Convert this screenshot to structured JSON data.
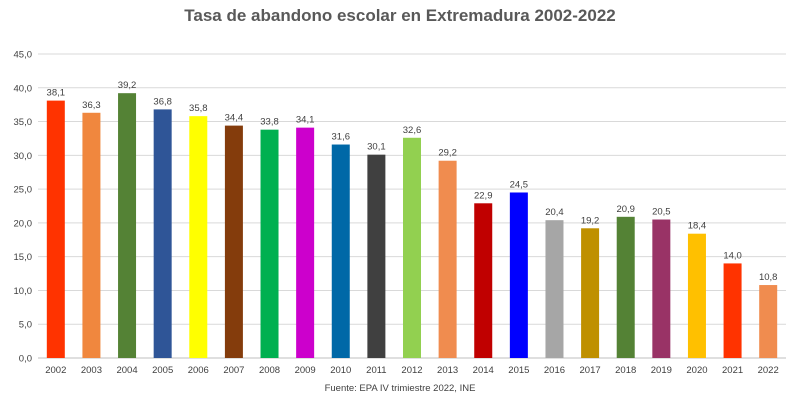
{
  "chart_data": {
    "type": "bar",
    "title": "Tasa de abandono escolar en Extremadura 2002-2022",
    "source": "Fuente: EPA IV trimiestre 2022, INE",
    "xlabel": "",
    "ylabel": "",
    "ylim": [
      0,
      45
    ],
    "ytick_step": 5,
    "grid": true,
    "legend": "none",
    "categories": [
      "2002",
      "2003",
      "2004",
      "2005",
      "2006",
      "2007",
      "2008",
      "2009",
      "2010",
      "2011",
      "2012",
      "2013",
      "2014",
      "2015",
      "2016",
      "2017",
      "2018",
      "2019",
      "2020",
      "2021",
      "2022"
    ],
    "values": [
      38.1,
      36.3,
      39.2,
      36.8,
      35.8,
      34.4,
      33.8,
      34.1,
      31.6,
      30.1,
      32.6,
      29.2,
      22.9,
      24.5,
      20.4,
      19.2,
      20.9,
      20.5,
      18.4,
      14.0,
      10.8
    ],
    "colors": [
      "#ff3300",
      "#f0873e",
      "#548235",
      "#2f5597",
      "#ffff00",
      "#843c0c",
      "#00b050",
      "#cc00cc",
      "#0068a7",
      "#404040",
      "#92d050",
      "#f08c4f",
      "#c00000",
      "#0000ff",
      "#a6a6a6",
      "#bf9000",
      "#548235",
      "#993366",
      "#ffc000",
      "#ff3300",
      "#f08c4f"
    ],
    "value_labels": [
      "38,1",
      "36,3",
      "39,2",
      "36,8",
      "35,8",
      "34,4",
      "33,8",
      "34,1",
      "31,6",
      "30,1",
      "32,6",
      "29,2",
      "22,9",
      "24,5",
      "20,4",
      "19,2",
      "20,9",
      "20,5",
      "18,4",
      "14,0",
      "10,8"
    ],
    "y_tick_labels": [
      "0,0",
      "5,0",
      "10,0",
      "15,0",
      "20,0",
      "25,0",
      "30,0",
      "35,0",
      "40,0",
      "45,0"
    ]
  }
}
